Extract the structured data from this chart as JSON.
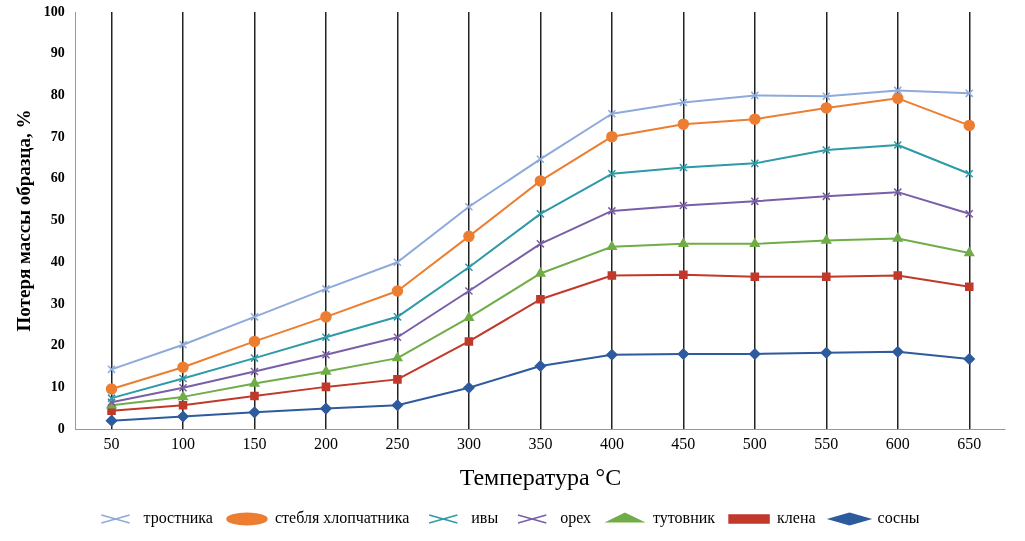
{
  "chart_data": {
    "type": "line",
    "xlabel": "Температура °C",
    "ylabel": "Потеря массы образца, %",
    "categories": [
      "50",
      "100",
      "150",
      "200",
      "250",
      "300",
      "350",
      "400",
      "450",
      "500",
      "550",
      "600",
      "650"
    ],
    "ylim": [
      0,
      100
    ],
    "yticks": [
      0,
      10,
      20,
      30,
      40,
      50,
      60,
      70,
      80,
      90,
      100
    ],
    "grid": "x",
    "legend": "bottom",
    "series": [
      {
        "name": "тростника",
        "color": "#8eaadb",
        "marker": "cross",
        "values": [
          14.3,
          20.2,
          26.9,
          33.6,
          40,
          53.3,
          64.7,
          75.6,
          78.3,
          80,
          79.8,
          81.2,
          80.5
        ]
      },
      {
        "name": "стебля хлопчатника",
        "color": "#ed7d31",
        "marker": "circle",
        "values": [
          9.6,
          14.8,
          21,
          26.9,
          33.1,
          46.2,
          59.5,
          70.1,
          73.1,
          74.3,
          77,
          79.3,
          72.8
        ]
      },
      {
        "name": "ивы",
        "color": "#2e9aa8",
        "marker": "cross",
        "values": [
          7.4,
          12.1,
          17,
          22,
          26.9,
          38.8,
          51.6,
          61.2,
          62.7,
          63.7,
          66.9,
          68.1,
          61.2
        ]
      },
      {
        "name": "орех",
        "color": "#7a5ea8",
        "marker": "cross",
        "values": [
          6.4,
          9.9,
          13.8,
          17.8,
          22,
          33.1,
          44.4,
          52.3,
          53.6,
          54.6,
          55.8,
          56.8,
          51.6
        ]
      },
      {
        "name": "тутовник",
        "color": "#70ad47",
        "marker": "triangle",
        "values": [
          5.7,
          7.7,
          10.9,
          13.8,
          17,
          26.7,
          37.3,
          43.7,
          44.4,
          44.4,
          45.2,
          45.7,
          42.2
        ]
      },
      {
        "name": "клена",
        "color": "#c0392b",
        "marker": "square",
        "values": [
          4.4,
          5.7,
          7.9,
          10.1,
          11.9,
          21,
          31.1,
          36.8,
          37,
          36.5,
          36.5,
          36.8,
          34.1
        ]
      },
      {
        "name": "сосны",
        "color": "#2e5a9e",
        "marker": "diamond",
        "values": [
          2,
          3,
          4,
          4.9,
          5.7,
          9.9,
          15.1,
          17.8,
          18,
          18,
          18.3,
          18.5,
          16.8
        ]
      }
    ]
  }
}
